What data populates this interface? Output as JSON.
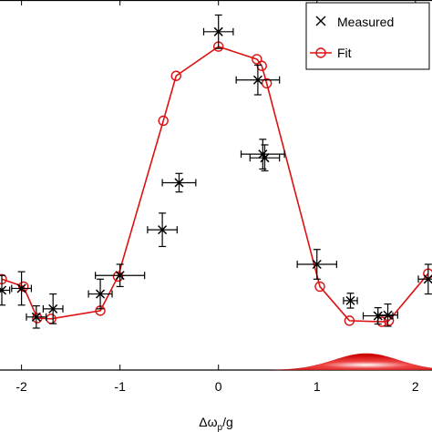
{
  "chart_data": {
    "type": "scatter",
    "title": "",
    "xlabel": "Δωp/g",
    "xlabel_main": "Δω",
    "xlabel_sub": "p",
    "xlabel_tail": "/g",
    "ylabel": "",
    "xlim": [
      -2.2,
      2.15
    ],
    "ylim": [
      0,
      1
    ],
    "x_ticks": [
      -2,
      -1,
      0,
      1,
      2
    ],
    "x_tick_labels": [
      "-2",
      "-1",
      "0",
      "1",
      "2"
    ],
    "grid": false,
    "legend_position": "top-right",
    "legend": [
      {
        "label": "Measured",
        "marker": "x",
        "color": "#000000"
      },
      {
        "label": "Fit",
        "marker": "circle-line",
        "color": "#dd1111"
      }
    ],
    "series": [
      {
        "name": "Measured",
        "color": "#000000",
        "points": [
          {
            "x": -2.2,
            "y": 0.215,
            "xerr": 0.08,
            "yerr": 0.04
          },
          {
            "x": -2.0,
            "y": 0.22,
            "xerr": 0.1,
            "yerr": 0.045
          },
          {
            "x": -1.85,
            "y": 0.143,
            "xerr": 0.1,
            "yerr": 0.03
          },
          {
            "x": -1.68,
            "y": 0.165,
            "xerr": 0.1,
            "yerr": 0.04
          },
          {
            "x": -1.2,
            "y": 0.205,
            "xerr": 0.12,
            "yerr": 0.04
          },
          {
            "x": -1.0,
            "y": 0.255,
            "xerr": 0.25,
            "yerr": 0.03
          },
          {
            "x": -0.57,
            "y": 0.378,
            "xerr": 0.15,
            "yerr": 0.045
          },
          {
            "x": -0.4,
            "y": 0.505,
            "xerr": 0.17,
            "yerr": 0.025
          },
          {
            "x": 0.0,
            "y": 0.912,
            "xerr": 0.15,
            "yerr": 0.045
          },
          {
            "x": 0.4,
            "y": 0.782,
            "xerr": 0.22,
            "yerr": 0.04
          },
          {
            "x": 0.45,
            "y": 0.582,
            "xerr": 0.22,
            "yerr": 0.04
          },
          {
            "x": 0.47,
            "y": 0.572,
            "xerr": 0.15,
            "yerr": 0.035
          },
          {
            "x": 1.0,
            "y": 0.285,
            "xerr": 0.2,
            "yerr": 0.04
          },
          {
            "x": 1.34,
            "y": 0.187,
            "xerr": 0.07,
            "yerr": 0.02
          },
          {
            "x": 1.62,
            "y": 0.146,
            "xerr": 0.15,
            "yerr": 0.022
          },
          {
            "x": 1.72,
            "y": 0.148,
            "xerr": 0.1,
            "yerr": 0.03
          },
          {
            "x": 2.13,
            "y": 0.245,
            "xerr": 0.1,
            "yerr": 0.04
          }
        ]
      },
      {
        "name": "Fit",
        "color": "#dd1111",
        "points": [
          {
            "x": -2.2,
            "y": 0.245
          },
          {
            "x": -1.98,
            "y": 0.225
          },
          {
            "x": -1.84,
            "y": 0.14
          },
          {
            "x": -1.7,
            "y": 0.138
          },
          {
            "x": -1.2,
            "y": 0.16
          },
          {
            "x": -1.02,
            "y": 0.252
          },
          {
            "x": -0.56,
            "y": 0.672
          },
          {
            "x": -0.43,
            "y": 0.793
          },
          {
            "x": 0.0,
            "y": 0.872
          },
          {
            "x": 0.39,
            "y": 0.838
          },
          {
            "x": 0.44,
            "y": 0.82
          },
          {
            "x": 0.49,
            "y": 0.773
          },
          {
            "x": 1.03,
            "y": 0.225
          },
          {
            "x": 1.33,
            "y": 0.133
          },
          {
            "x": 1.66,
            "y": 0.13
          },
          {
            "x": 1.73,
            "y": 0.133
          },
          {
            "x": 2.13,
            "y": 0.26
          }
        ]
      }
    ],
    "annotations": [
      {
        "type": "gaussian-glow",
        "center": 1.5,
        "sigma": 0.33,
        "peak": 0.045,
        "color": "#dd1111"
      }
    ]
  }
}
